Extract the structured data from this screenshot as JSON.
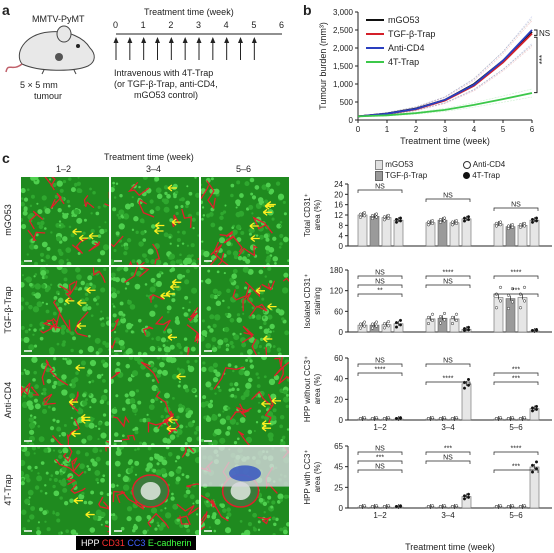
{
  "panels": {
    "a": "a",
    "b": "b",
    "c": "c"
  },
  "panel_a": {
    "mouse_label": "MMTV-PyMT",
    "tumour_size": "5 × 5 mm",
    "tumour_word": "tumour",
    "timeline_title": "Treatment time (week)",
    "ticks": [
      "0",
      "1",
      "2",
      "3",
      "4",
      "5",
      "6"
    ],
    "treatment_line1": "Intravenous with 4T-Trap",
    "treatment_line2": "(or TGF-β-Trap, anti-CD4,",
    "treatment_line3": "mGO53 control)",
    "colors": {
      "mouse": "#e8e8e8",
      "tumour": "#555555"
    }
  },
  "panel_b": {
    "chart_data": {
      "type": "line",
      "ylabel": "Tumour burden (mm³)",
      "xlabel": "Treatment time (week)",
      "xlim": [
        0,
        6
      ],
      "ylim": [
        0,
        3000
      ],
      "x_ticks": [
        "0",
        "1",
        "2",
        "3",
        "4",
        "5",
        "6"
      ],
      "y_ticks": [
        "0",
        "500",
        "1,000",
        "1,500",
        "2,000",
        "2,500",
        "3,000"
      ],
      "x": [
        0,
        1,
        2,
        3,
        4,
        5,
        6
      ],
      "series": [
        {
          "name": "mGO53",
          "color": "#111111",
          "values": [
            100,
            180,
            320,
            560,
            1000,
            1650,
            2450
          ]
        },
        {
          "name": "TGF-β-Trap",
          "color": "#d4202a",
          "values": [
            100,
            170,
            300,
            540,
            950,
            1600,
            2400
          ]
        },
        {
          "name": "Anti-CD4",
          "color": "#2a3fbf",
          "values": [
            100,
            175,
            310,
            560,
            980,
            1650,
            2500
          ]
        },
        {
          "name": "4T-Trap",
          "color": "#3cc84a",
          "values": [
            100,
            130,
            190,
            280,
            420,
            580,
            750
          ]
        }
      ],
      "annotations": [
        "NS",
        "***"
      ]
    }
  },
  "panel_c_images": {
    "top_label": "Treatment time (week)",
    "columns": [
      "1–2",
      "3–4",
      "5–6"
    ],
    "rows": [
      "mGO53",
      "TGF-β-Trap",
      "Anti-CD4",
      "4T-Trap"
    ],
    "legend": [
      {
        "text": "HPP",
        "color": "#ffffff"
      },
      {
        "text": "CD31",
        "color": "#ff3030"
      },
      {
        "text": "CC3",
        "color": "#4060ff"
      },
      {
        "text": "E-cadherin",
        "color": "#40ff40"
      }
    ]
  },
  "panel_c_charts": {
    "legend": [
      {
        "name": "mGO53",
        "marker": "bar-light"
      },
      {
        "name": "Anti-CD4",
        "marker": "open-circle"
      },
      {
        "name": "TGF-β-Trap",
        "marker": "bar-grey"
      },
      {
        "name": "4T-Trap",
        "marker": "filled-circle"
      }
    ],
    "xlabel": "Treatment time (week)",
    "chart_data": [
      {
        "type": "bar",
        "ylabel": "Total CD31⁺ area (%)",
        "categories": [
          "1–2",
          "3–4",
          "5–6"
        ],
        "ylim": [
          0,
          24
        ],
        "y_ticks": [
          "0",
          "4",
          "8",
          "12",
          "16",
          "20",
          "24"
        ],
        "series": [
          {
            "name": "mGO53",
            "values": [
              12,
              9,
              8.5
            ]
          },
          {
            "name": "TGF-β-Trap",
            "values": [
              11.5,
              10,
              7.5
            ]
          },
          {
            "name": "Anti-CD4",
            "values": [
              11,
              9,
              8
            ]
          },
          {
            "name": "4T-Trap",
            "values": [
              10,
              10.5,
              10
            ]
          }
        ],
        "annotations": [
          "NS",
          "NS",
          "NS"
        ]
      },
      {
        "type": "bar",
        "ylabel": "Isolated CD31⁺ staining",
        "categories": [
          "1–2",
          "3–4",
          "5–6"
        ],
        "ylim": [
          0,
          180
        ],
        "y_ticks": [
          "0",
          "60",
          "120",
          "180"
        ],
        "series": [
          {
            "name": "mGO53",
            "values": [
              20,
              38,
              100
            ]
          },
          {
            "name": "TGF-β-Trap",
            "values": [
              20,
              40,
              97
            ]
          },
          {
            "name": "Anti-CD4",
            "values": [
              21,
              38,
              100
            ]
          },
          {
            "name": "4T-Trap",
            "values": [
              24,
              8,
              3
            ]
          }
        ],
        "annotations": [
          "NS",
          "NS",
          "**",
          "****",
          "NS",
          "***",
          "****"
        ]
      },
      {
        "type": "bar",
        "ylabel": "HPP without CC3⁺ area (%)",
        "categories": [
          "1–2",
          "3–4",
          "5–6"
        ],
        "ylim": [
          0,
          60
        ],
        "y_ticks": [
          "0",
          "20",
          "40",
          "60"
        ],
        "series": [
          {
            "name": "mGO53",
            "values": [
              1,
              1,
              1
            ]
          },
          {
            "name": "TGF-β-Trap",
            "values": [
              1,
              1,
              1
            ]
          },
          {
            "name": "Anti-CD4",
            "values": [
              1,
              1,
              1
            ]
          },
          {
            "name": "4T-Trap",
            "values": [
              1,
              35,
              11
            ]
          }
        ],
        "annotations": [
          "NS",
          "****",
          "****",
          "NS",
          "***",
          "***"
        ]
      },
      {
        "type": "bar",
        "ylabel": "HPP with CC3⁺ area (%)",
        "categories": [
          "1–2",
          "3–4",
          "5–6"
        ],
        "ylim": [
          0,
          65
        ],
        "y_ticks": [
          "0",
          "25",
          "45",
          "65"
        ],
        "series": [
          {
            "name": "mGO53",
            "values": [
              1,
              1,
              1
            ]
          },
          {
            "name": "TGF-β-Trap",
            "values": [
              1,
              1,
              1
            ]
          },
          {
            "name": "Anti-CD4",
            "values": [
              1,
              1,
              1
            ]
          },
          {
            "name": "4T-Trap",
            "values": [
              1,
              12,
              43
            ]
          }
        ],
        "annotations": [
          "NS",
          "***",
          "NS",
          "***",
          "NS",
          "***",
          "****"
        ]
      }
    ]
  }
}
